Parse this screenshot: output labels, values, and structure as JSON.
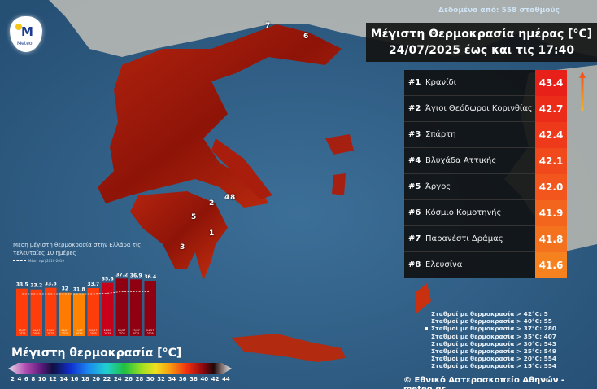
{
  "logo": {
    "text": "Meteo"
  },
  "stations_note": "Δεδομένα από: 558 σταθμούς",
  "title": {
    "line1": "Μέγιστη Θερμοκρασία ημέρας [°C]",
    "line2": "24/07/2025 έως και τις 17:40"
  },
  "ranking": [
    {
      "rank": "#1",
      "name": "Κρανίδι",
      "value": "43.4",
      "color": "#e8201a"
    },
    {
      "rank": "#2",
      "name": "Άγιοι Θεόδωροι Κορινθίας",
      "value": "42.7",
      "color": "#eb2c19"
    },
    {
      "rank": "#3",
      "name": "Σπάρτη",
      "value": "42.4",
      "color": "#ee3a1a"
    },
    {
      "rank": "#4",
      "name": "Βλυχάδα Αττικής",
      "value": "42.1",
      "color": "#f04a1c"
    },
    {
      "rank": "#5",
      "name": "Άργος",
      "value": "42.0",
      "color": "#f2561c"
    },
    {
      "rank": "#6",
      "name": "Κόσμιο Κομοτηνής",
      "value": "41.9",
      "color": "#f3641d"
    },
    {
      "rank": "#7",
      "name": "Παρανέστι Δράμας",
      "value": "41.8",
      "color": "#f4721e"
    },
    {
      "rank": "#8",
      "name": "Ελευσίνα",
      "value": "41.6",
      "color": "#f5821f"
    }
  ],
  "map_markers": [
    "1",
    "2",
    "3",
    "4",
    "5",
    "6",
    "7",
    "8"
  ],
  "station_counts": [
    "Σταθμοί με θερμοκρασία > 42°C: 5",
    "Σταθμοί με θερμοκρασία > 40°C: 55",
    "Σταθμοί με θερμοκρασία > 37°C: 280",
    "Σταθμοί με θερμοκρασία > 35°C: 407",
    "Σταθμοί με θερμοκρασία > 30°C: 543",
    "Σταθμοί με θερμοκρασία > 25°C: 549",
    "Σταθμοί με θερμοκρασία > 20°C: 554",
    "Σταθμοί με θερμοκρασία > 15°C: 554"
  ],
  "copyright": "© Εθνικό Αστεροσκοπείο Αθηνών - meteo.gr",
  "chart_data": {
    "type": "bar",
    "title": "Μέση μέγιστη θερμοκρασία στην Ελλάδα τις τελευταίες 10 ημέρες",
    "legend": "Μέση τιμή 2010-2019",
    "categories": [
      "15/07 2025",
      "16/07 2025",
      "17/07 2025",
      "18/07 2025",
      "19/07 2025",
      "20/07 2025",
      "21/07 2025",
      "22/07 2025",
      "23/07 2025",
      "24/07 2025"
    ],
    "values": [
      33.5,
      33.2,
      33.8,
      32.0,
      31.8,
      33.7,
      35.6,
      37.2,
      36.9,
      36.4
    ],
    "colors": [
      "#ff3d0a",
      "#ff3d0a",
      "#ff3d0a",
      "#ff7a00",
      "#ff8200",
      "#ff3d0a",
      "#c8001a",
      "#8f0010",
      "#8f0010",
      "#8f0010"
    ],
    "climatology": [
      31.6,
      31.6,
      31.6,
      31.6,
      31.6,
      31.6,
      31.8,
      32.4,
      32.4,
      32.4
    ],
    "ylim": [
      16,
      40
    ]
  },
  "colorbar": {
    "title": "Μέγιστη θερμοκρασία [°C]",
    "ticks": [
      "2",
      "4",
      "6",
      "8",
      "10",
      "12",
      "14",
      "16",
      "18",
      "20",
      "22",
      "24",
      "26",
      "28",
      "30",
      "32",
      "34",
      "36",
      "38",
      "40",
      "42",
      "44"
    ]
  }
}
